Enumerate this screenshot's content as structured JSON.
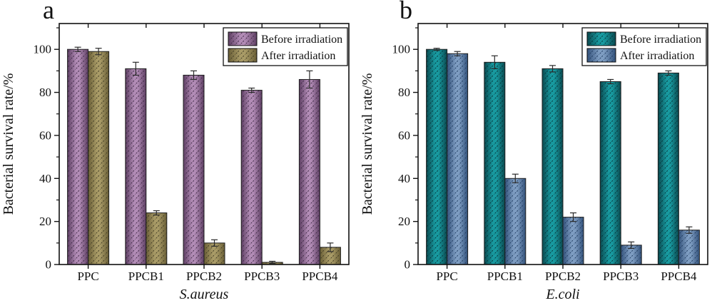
{
  "figure": {
    "background": "#ffffff",
    "text_color": "#111111",
    "frame_color": "#111111"
  },
  "chart_data": [
    {
      "panel_label": "a",
      "type": "bar",
      "title": "",
      "xlabel": "S.aureus",
      "ylabel": "Bacterial survival rate/%",
      "categories": [
        "PPC",
        "PPCB1",
        "PPCB2",
        "PPCB3",
        "PPCB4"
      ],
      "series": [
        {
          "name": "Before irradiation",
          "values": [
            100,
            91,
            88,
            81,
            86
          ],
          "errors": [
            1,
            3,
            2,
            1,
            4
          ],
          "color_center": "#b28cb6",
          "color_edge": "#5e3f63",
          "hatch_color": "#3c2743"
        },
        {
          "name": "After irradiation",
          "values": [
            99,
            24,
            10,
            1,
            8
          ],
          "errors": [
            1.5,
            1,
            1.5,
            0.5,
            2
          ],
          "color_center": "#a99b67",
          "color_edge": "#6a5f37",
          "hatch_color": "#3f3a22"
        }
      ],
      "ylim": [
        0,
        112
      ],
      "yticks": [
        0,
        20,
        40,
        60,
        80,
        100
      ],
      "minor_tick_step": 10,
      "legend_position": "top-right",
      "grid": false
    },
    {
      "panel_label": "b",
      "type": "bar",
      "title": "",
      "xlabel": "E.coli",
      "ylabel": "Bacterial survival rate/%",
      "categories": [
        "PPC",
        "PPCB1",
        "PPCB2",
        "PPCB3",
        "PPCB4"
      ],
      "series": [
        {
          "name": "Before irradiation",
          "values": [
            100,
            94,
            91,
            85,
            89
          ],
          "errors": [
            0.5,
            3,
            1.5,
            1,
            1
          ],
          "color_center": "#189aa0",
          "color_edge": "#0a4a50",
          "hatch_color": "#053036"
        },
        {
          "name": "After irradiation",
          "values": [
            98,
            40,
            22,
            9,
            16
          ],
          "errors": [
            1,
            2,
            2,
            1.5,
            1.5
          ],
          "color_center": "#7e9dc2",
          "color_edge": "#33527b",
          "hatch_color": "#1f3a5e"
        }
      ],
      "ylim": [
        0,
        112
      ],
      "yticks": [
        0,
        20,
        40,
        60,
        80,
        100
      ],
      "minor_tick_step": 10,
      "legend_position": "top-right",
      "grid": false
    }
  ]
}
